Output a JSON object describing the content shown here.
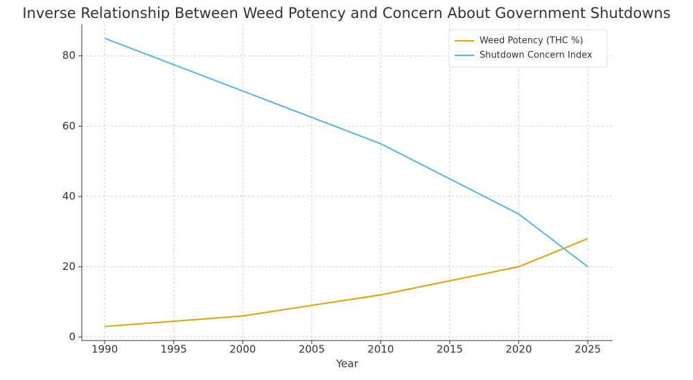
{
  "chart_data": {
    "type": "line",
    "title": "Inverse Relationship Between Weed Potency and Concern About Government Shutdowns",
    "x_label": "Year",
    "x": [
      1990,
      2000,
      2010,
      2020,
      2025
    ],
    "series": [
      {
        "name": "Weed Potency (THC %)",
        "color": "#e69f00",
        "values": [
          3,
          6,
          12,
          20,
          28
        ]
      },
      {
        "name": "Shutdown Concern Index",
        "color": "#56b4e9",
        "values": [
          85,
          70,
          55,
          35,
          20
        ]
      }
    ],
    "xlim": [
      1988.34,
      2026.8
    ],
    "xticks": [
      1990,
      1995,
      2000,
      2005,
      2010,
      2015,
      2020,
      2025
    ],
    "ylim": [
      -1,
      89
    ],
    "yticks": [
      0,
      20,
      40,
      60,
      80
    ],
    "grid": true,
    "legend": "upper right"
  }
}
